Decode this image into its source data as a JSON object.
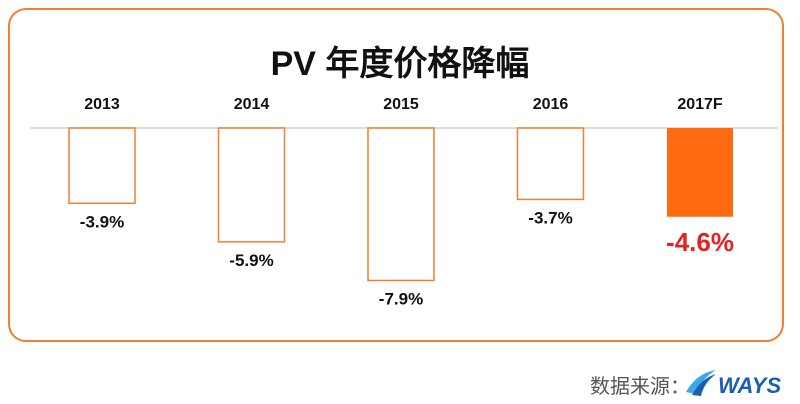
{
  "chart_data": {
    "type": "bar",
    "title": "PV  年度价格降幅",
    "categories": [
      "2013",
      "2014",
      "2015",
      "2016",
      "2017F"
    ],
    "values": [
      -3.9,
      -5.9,
      -7.9,
      -3.7,
      -4.6
    ],
    "value_labels": [
      "-3.9%",
      "-5.9%",
      "-7.9%",
      "-3.7%",
      "-4.6%"
    ],
    "highlight_index": 4,
    "ylim": [
      -9,
      0
    ],
    "grid": false,
    "legend": "none",
    "colors": {
      "outline": "#f07f32",
      "highlight_fill": "#ff6a10",
      "highlight_label": "#e52222",
      "baseline": "#d0d0d0",
      "frame": "#f07f32"
    }
  },
  "source": {
    "label": "数据来源：",
    "logo_text": "WAYS",
    "logo_colors": {
      "primary": "#1a5fb4",
      "secondary": "#3fa9e8"
    }
  }
}
